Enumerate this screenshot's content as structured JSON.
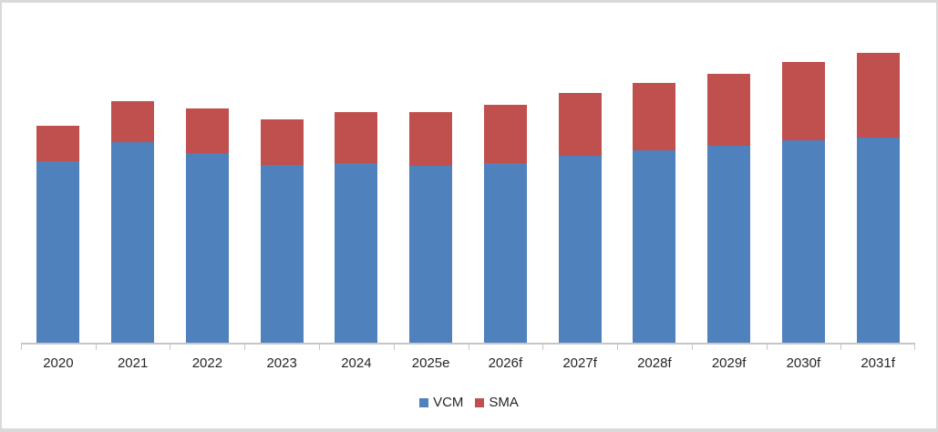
{
  "chart_data": {
    "type": "bar",
    "stacked": true,
    "title": "",
    "xlabel": "",
    "ylabel": "",
    "grid": false,
    "y_axis_labels_visible": false,
    "legend_position": "bottom",
    "value_note": "y-axis unlabeled in source; values are estimated relative units where 100 = plot-area height",
    "ylim": [
      0,
      100
    ],
    "categories": [
      "2020",
      "2021",
      "2022",
      "2023",
      "2024",
      "2025e",
      "2026f",
      "2027f",
      "2028f",
      "2029f",
      "2030f",
      "2031f"
    ],
    "series": [
      {
        "name": "VCM",
        "color": "#4F81BD",
        "values": [
          54.4,
          60.1,
          56.8,
          53.4,
          53.8,
          52.9,
          53.9,
          55.9,
          57.8,
          59.1,
          60.8,
          61.5
        ]
      },
      {
        "name": "SMA",
        "color": "#C0504D",
        "values": [
          10.7,
          12.3,
          13.3,
          13.5,
          15.4,
          16.2,
          17.4,
          18.9,
          20.2,
          21.6,
          23.4,
          25.3
        ]
      }
    ]
  },
  "legend": {
    "items": [
      {
        "label": "VCM",
        "color": "#4F81BD"
      },
      {
        "label": "SMA",
        "color": "#C0504D"
      }
    ]
  },
  "colors": {
    "vcm_blue": "#4F81BD",
    "sma_red": "#C0504D",
    "axis_gray": "#C6C6C6",
    "label_text": "#262626",
    "frame_border": "#D9D9D9",
    "background": "#FFFFFF"
  }
}
